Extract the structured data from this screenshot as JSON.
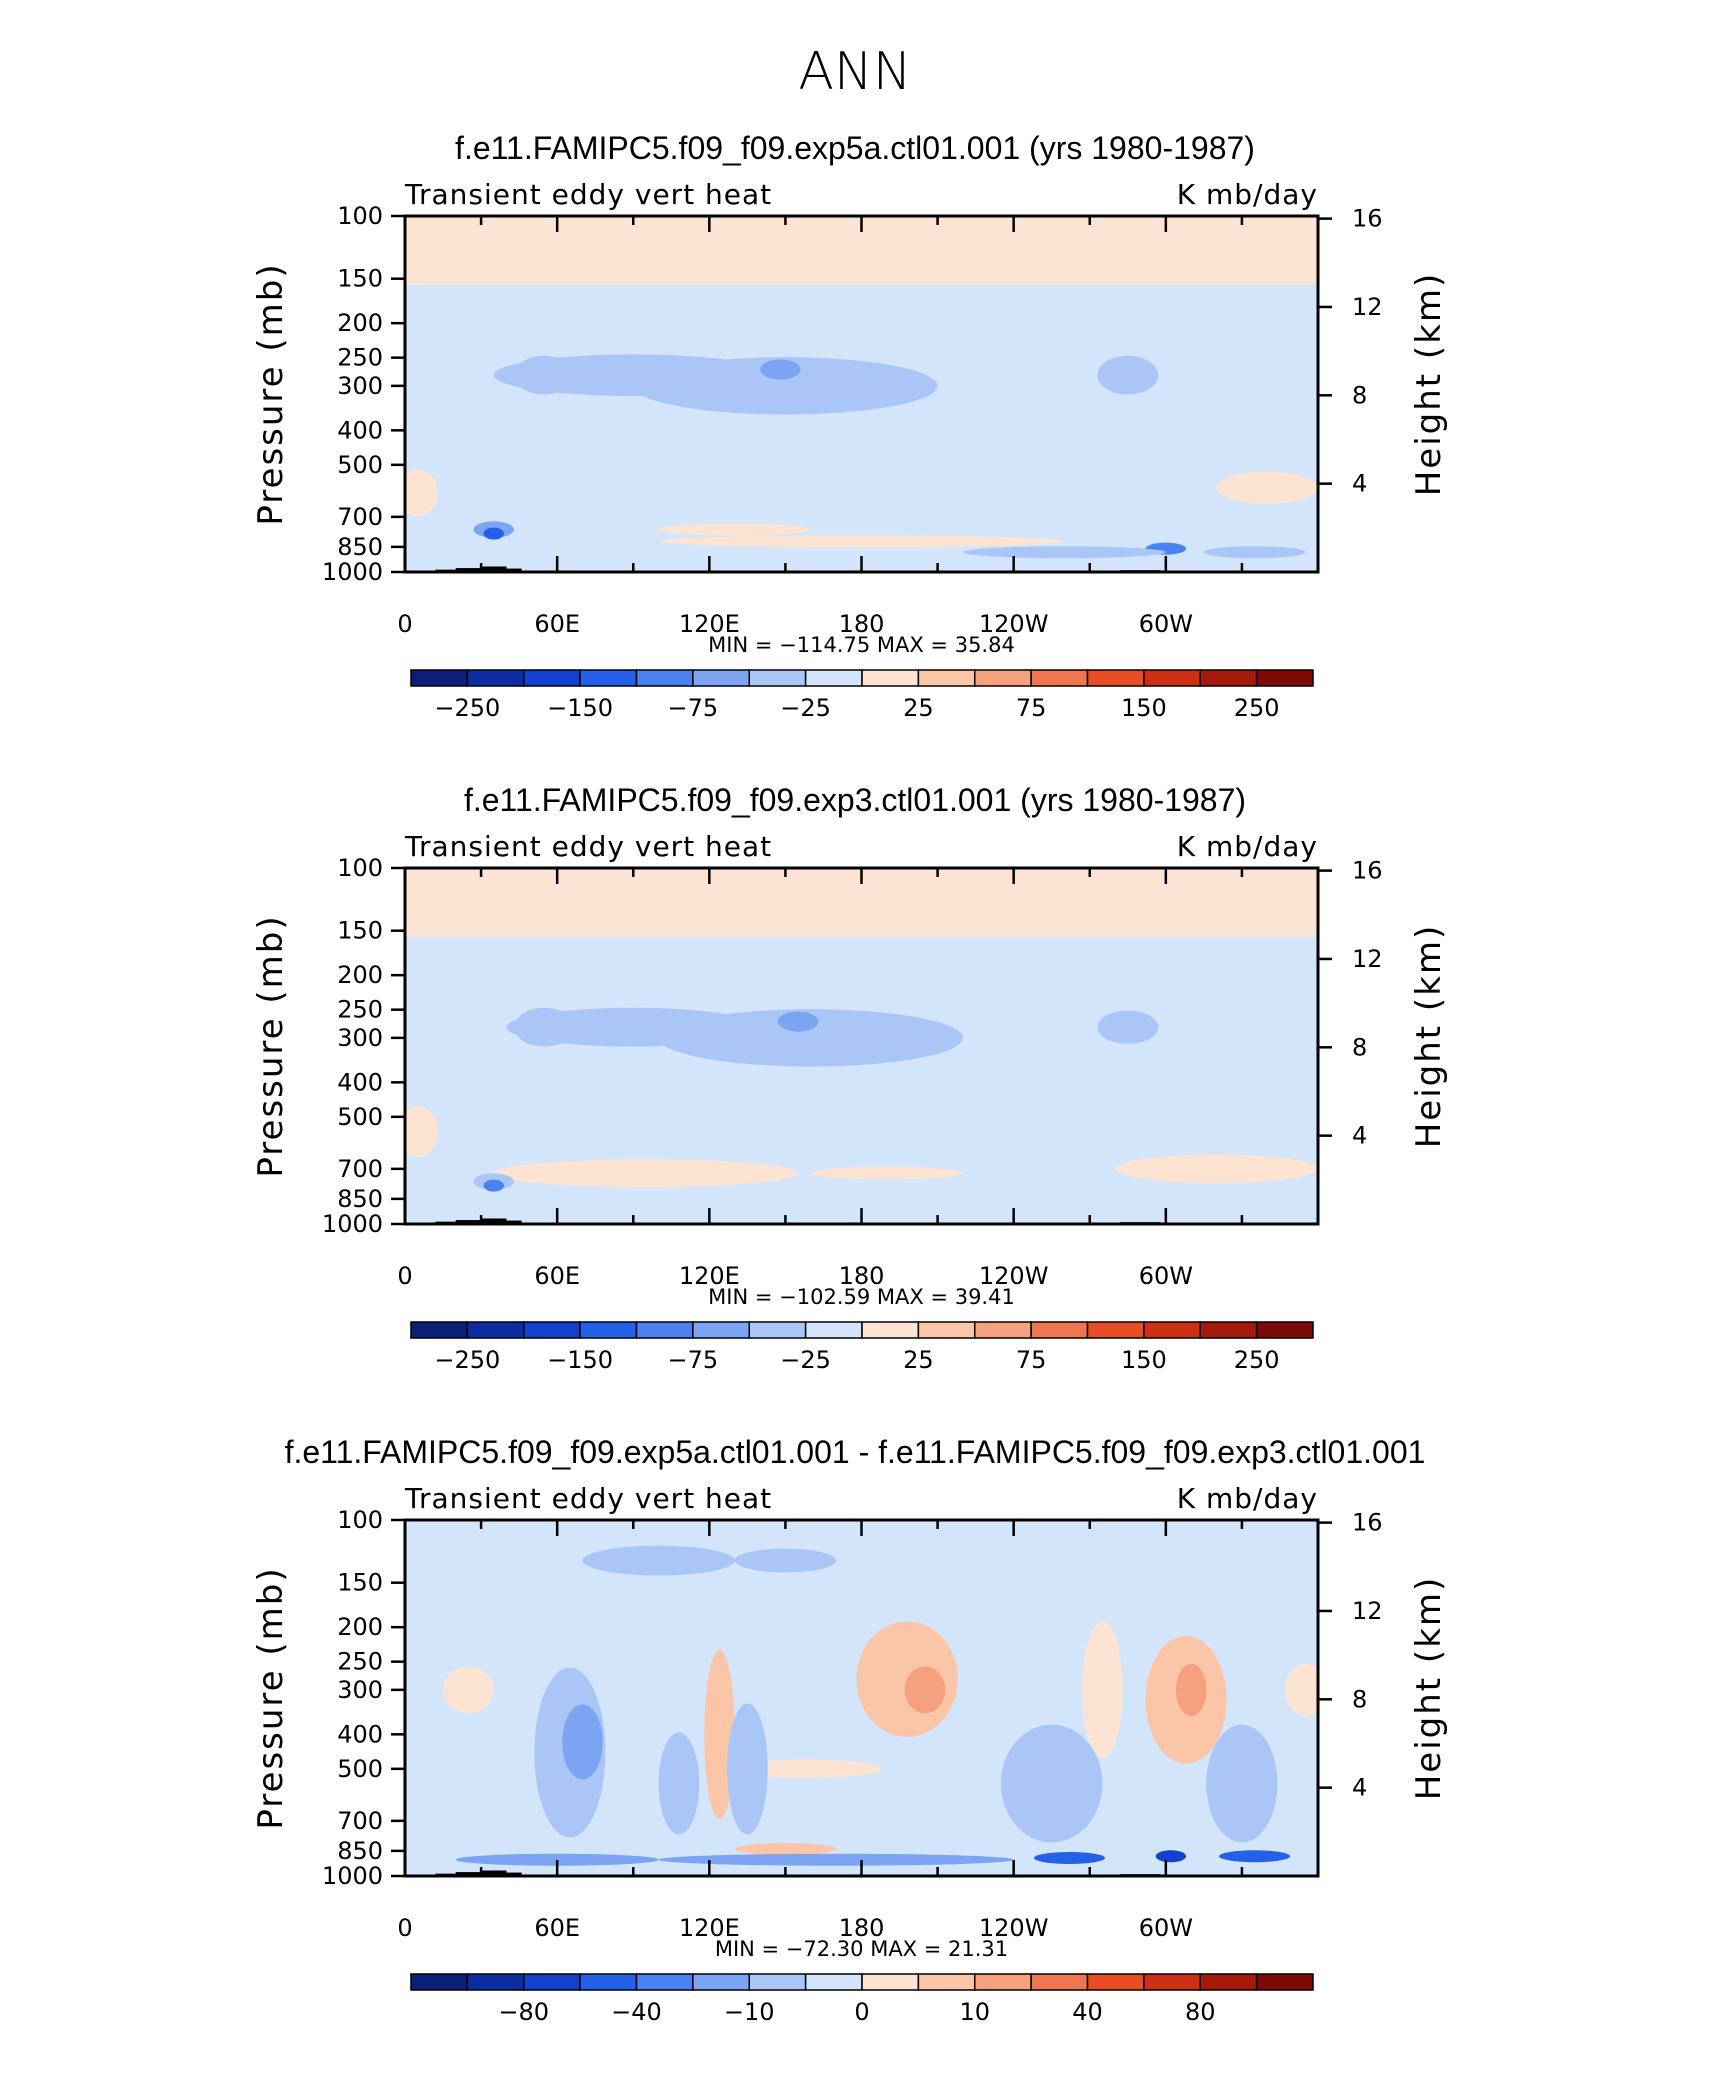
{
  "title": "ANN",
  "chart_data": [
    {
      "type": "heatmap",
      "title": "f.e11.FAMIPC5.f09_f09.exp5a.ctl01.001 (yrs 1980-1987)",
      "left_label": "Transient eddy vert heat",
      "right_label": "K mb/day",
      "ylabel": "Pressure (mb)",
      "ylabel_right": "Height (km)",
      "xticks": [
        "0",
        "60E",
        "120E",
        "180",
        "120W",
        "60W"
      ],
      "yticks": [
        "100",
        "150",
        "200",
        "250",
        "300",
        "400",
        "500",
        "700",
        "850",
        "1000"
      ],
      "height_ticks": [
        "16",
        "12",
        "8",
        "4"
      ],
      "stats": "MIN = −114.75   MAX =   35.84",
      "colorbar_labels": [
        "−250",
        "−150",
        "−75",
        "−25",
        "25",
        "75",
        "150",
        "250"
      ],
      "colorbar_label_slots": [
        1,
        3,
        5,
        7,
        9,
        11,
        13,
        15
      ],
      "colors": [
        "#0b1f78",
        "#0c2ea2",
        "#1340cc",
        "#2560e8",
        "#4a82f0",
        "#7ba4f3",
        "#aac6f7",
        "#d2e5fb",
        "#fde4d2",
        "#fbc5a8",
        "#f5a07f",
        "#ef7650",
        "#e84e26",
        "#cc2f12",
        "#a61a0b",
        "#7d0a05"
      ],
      "background_level": "#d2e5fb",
      "top_band": "#fde4d2",
      "blobs": [
        {
          "lon": 55,
          "p": 280,
          "w": 12,
          "h": 70,
          "level": 6
        },
        {
          "lon": 90,
          "p": 280,
          "w": 55,
          "h": 75,
          "level": 6
        },
        {
          "lon": 150,
          "p": 300,
          "w": 60,
          "h": 110,
          "level": 6
        },
        {
          "lon": 148,
          "p": 270,
          "w": 8,
          "h": 35,
          "level": 5
        },
        {
          "lon": 285,
          "p": 280,
          "w": 12,
          "h": 70,
          "level": 6
        },
        {
          "lon": 35,
          "p": 760,
          "w": 8,
          "h": 80,
          "level": 5
        },
        {
          "lon": 35,
          "p": 780,
          "w": 4,
          "h": 40,
          "level": 3
        },
        {
          "lon": 300,
          "p": 860,
          "w": 8,
          "h": 50,
          "level": 4
        },
        {
          "lon": 260,
          "p": 880,
          "w": 40,
          "h": 25,
          "level": 6
        },
        {
          "lon": 335,
          "p": 880,
          "w": 20,
          "h": 30,
          "level": 6
        }
      ],
      "warm": [
        {
          "lon": 5,
          "p": 600,
          "w": 8,
          "h": 180,
          "level": 8
        },
        {
          "lon": 130,
          "p": 760,
          "w": 30,
          "h": 60,
          "level": 8
        },
        {
          "lon": 340,
          "p": 580,
          "w": 20,
          "h": 120,
          "level": 8
        },
        {
          "lon": 180,
          "p": 820,
          "w": 80,
          "h": 30,
          "level": 8
        }
      ]
    },
    {
      "type": "heatmap",
      "title": "f.e11.FAMIPC5.f09_f09.exp3.ctl01.001 (yrs 1980-1987)",
      "left_label": "Transient eddy vert heat",
      "right_label": "K mb/day",
      "ylabel": "Pressure (mb)",
      "ylabel_right": "Height (km)",
      "xticks": [
        "0",
        "60E",
        "120E",
        "180",
        "120W",
        "60W"
      ],
      "yticks": [
        "100",
        "150",
        "200",
        "250",
        "300",
        "400",
        "500",
        "700",
        "850",
        "1000"
      ],
      "height_ticks": [
        "16",
        "12",
        "8",
        "4"
      ],
      "stats": "MIN = −102.59   MAX =   39.41",
      "colorbar_labels": [
        "−250",
        "−150",
        "−75",
        "−25",
        "25",
        "75",
        "150",
        "250"
      ],
      "colorbar_label_slots": [
        1,
        3,
        5,
        7,
        9,
        11,
        13,
        15
      ],
      "colors": [
        "#0b1f78",
        "#0c2ea2",
        "#1340cc",
        "#2560e8",
        "#4a82f0",
        "#7ba4f3",
        "#aac6f7",
        "#d2e5fb",
        "#fde4d2",
        "#fbc5a8",
        "#f5a07f",
        "#ef7650",
        "#e84e26",
        "#cc2f12",
        "#a61a0b",
        "#7d0a05"
      ],
      "background_level": "#d2e5fb",
      "top_band": "#fde4d2",
      "blobs": [
        {
          "lon": 55,
          "p": 280,
          "w": 12,
          "h": 70,
          "level": 6
        },
        {
          "lon": 90,
          "p": 280,
          "w": 50,
          "h": 70,
          "level": 6
        },
        {
          "lon": 160,
          "p": 300,
          "w": 60,
          "h": 110,
          "level": 6
        },
        {
          "lon": 155,
          "p": 270,
          "w": 8,
          "h": 35,
          "level": 5
        },
        {
          "lon": 285,
          "p": 280,
          "w": 12,
          "h": 60,
          "level": 6
        },
        {
          "lon": 35,
          "p": 760,
          "w": 8,
          "h": 80,
          "level": 6
        },
        {
          "lon": 35,
          "p": 780,
          "w": 4,
          "h": 40,
          "level": 4
        }
      ],
      "warm": [
        {
          "lon": 5,
          "p": 550,
          "w": 8,
          "h": 180,
          "level": 8
        },
        {
          "lon": 95,
          "p": 720,
          "w": 60,
          "h": 130,
          "level": 8
        },
        {
          "lon": 190,
          "p": 720,
          "w": 30,
          "h": 60,
          "level": 8
        },
        {
          "lon": 320,
          "p": 700,
          "w": 40,
          "h": 130,
          "level": 8
        }
      ]
    },
    {
      "type": "heatmap",
      "title": "f.e11.FAMIPC5.f09_f09.exp5a.ctl01.001 - f.e11.FAMIPC5.f09_f09.exp3.ctl01.001",
      "left_label": "Transient eddy vert heat",
      "right_label": "K mb/day",
      "ylabel": "Pressure (mb)",
      "ylabel_right": "Height (km)",
      "xticks": [
        "0",
        "60E",
        "120E",
        "180",
        "120W",
        "60W"
      ],
      "yticks": [
        "100",
        "150",
        "200",
        "250",
        "300",
        "400",
        "500",
        "700",
        "850",
        "1000"
      ],
      "height_ticks": [
        "16",
        "12",
        "8",
        "4"
      ],
      "stats": "MIN = −72.30   MAX =   21.31",
      "colorbar_labels": [
        "−80",
        "−40",
        "−10",
        "0",
        "10",
        "40",
        "80"
      ],
      "colorbar_label_slots": [
        2,
        4,
        6,
        8,
        10,
        12,
        14
      ],
      "colors": [
        "#0b1f78",
        "#0c2ea2",
        "#1340cc",
        "#2560e8",
        "#4a82f0",
        "#7ba4f3",
        "#aac6f7",
        "#d2e5fb",
        "#fde4d2",
        "#fbc5a8",
        "#f5a07f",
        "#ef7650",
        "#e84e26",
        "#cc2f12",
        "#a61a0b",
        "#7d0a05"
      ],
      "background_level": "#d2e5fb",
      "top_band": "#d2e5fb",
      "blobs": [
        {
          "lon": 65,
          "p": 450,
          "w": 14,
          "h": 450,
          "level": 6
        },
        {
          "lon": 70,
          "p": 420,
          "w": 8,
          "h": 200,
          "level": 5
        },
        {
          "lon": 108,
          "p": 550,
          "w": 8,
          "h": 350,
          "level": 6
        },
        {
          "lon": 135,
          "p": 500,
          "w": 8,
          "h": 400,
          "level": 6
        },
        {
          "lon": 255,
          "p": 550,
          "w": 20,
          "h": 400,
          "level": 6
        },
        {
          "lon": 330,
          "p": 550,
          "w": 14,
          "h": 400,
          "level": 6
        },
        {
          "lon": 60,
          "p": 900,
          "w": 40,
          "h": 40,
          "level": 5
        },
        {
          "lon": 170,
          "p": 900,
          "w": 70,
          "h": 40,
          "level": 5
        },
        {
          "lon": 262,
          "p": 890,
          "w": 14,
          "h": 30,
          "level": 3
        },
        {
          "lon": 302,
          "p": 880,
          "w": 6,
          "h": 60,
          "level": 2
        },
        {
          "lon": 335,
          "p": 880,
          "w": 14,
          "h": 40,
          "level": 3
        },
        {
          "lon": 100,
          "p": 130,
          "w": 30,
          "h": 25,
          "level": 6
        },
        {
          "lon": 150,
          "p": 130,
          "w": 20,
          "h": 20,
          "level": 6
        }
      ],
      "warm": [
        {
          "lon": 25,
          "p": 300,
          "w": 10,
          "h": 90,
          "level": 8
        },
        {
          "lon": 124,
          "p": 400,
          "w": 6,
          "h": 400,
          "level": 9
        },
        {
          "lon": 198,
          "p": 280,
          "w": 20,
          "h": 200,
          "level": 9
        },
        {
          "lon": 205,
          "p": 300,
          "w": 8,
          "h": 90,
          "level": 10
        },
        {
          "lon": 275,
          "p": 300,
          "w": 8,
          "h": 250,
          "level": 8
        },
        {
          "lon": 308,
          "p": 320,
          "w": 16,
          "h": 250,
          "level": 9
        },
        {
          "lon": 310,
          "p": 300,
          "w": 6,
          "h": 100,
          "level": 10
        },
        {
          "lon": 355,
          "p": 300,
          "w": 8,
          "h": 100,
          "level": 8
        },
        {
          "lon": 150,
          "p": 840,
          "w": 20,
          "h": 30,
          "level": 9
        },
        {
          "lon": 158,
          "p": 500,
          "w": 30,
          "h": 60,
          "level": 8
        }
      ]
    }
  ]
}
